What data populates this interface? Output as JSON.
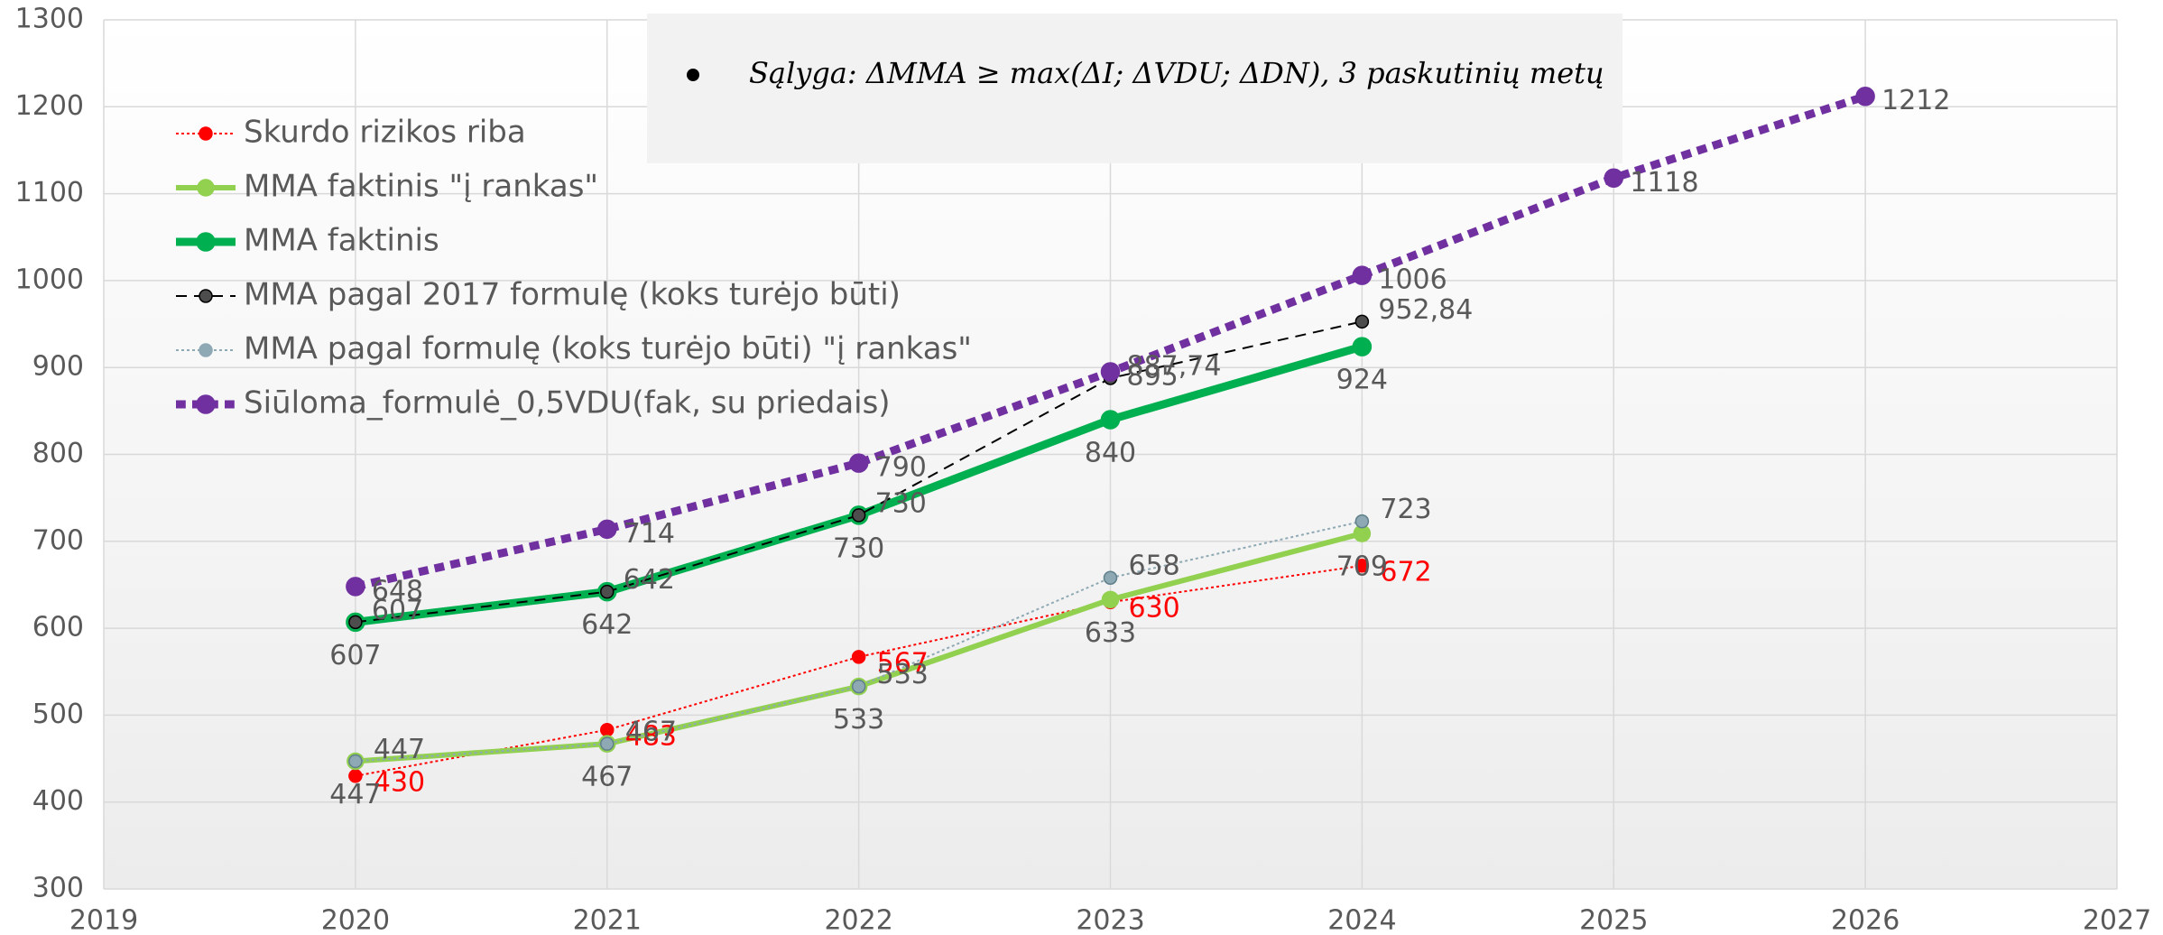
{
  "chart_data": {
    "type": "line",
    "annotation": {
      "prefix": "Sąlyga: ΔMMA ≥ max(ΔI; ΔVDU; ΔDN)",
      "suffix": ", 3 paskutinių metų"
    },
    "x": [
      2020,
      2021,
      2022,
      2023,
      2024,
      2025,
      2026
    ],
    "series": [
      {
        "name": "Skurdo rizikos riba",
        "color": "#ff0000",
        "label_color": "#ff0000",
        "line_style": "dotted",
        "values": [
          430,
          483,
          567,
          630,
          672,
          null,
          null
        ]
      },
      {
        "name": "MMA faktinis \"į rankas\"",
        "color": "#92d050",
        "label_color": "#595959",
        "line_style": "solid",
        "values": [
          447,
          467,
          533,
          633,
          709,
          null,
          null
        ]
      },
      {
        "name": "MMA faktinis",
        "color": "#00b050",
        "label_color": "#595959",
        "line_style": "solid",
        "values": [
          607,
          642,
          730,
          840,
          924,
          null,
          null
        ]
      },
      {
        "name": "MMA pagal 2017 formulę (koks turėjo būti)",
        "color": "#000000",
        "label_color": "#595959",
        "line_style": "dashed",
        "values": [
          607,
          642,
          730,
          887.74,
          952.84,
          null,
          null
        ],
        "value_labels": [
          "607",
          "642",
          "730",
          "887,74",
          "952,84",
          null,
          null
        ]
      },
      {
        "name": "MMA pagal formulę (koks turėjo būti) \"į rankas\"",
        "color": "#8ea9b4",
        "label_color": "#595959",
        "line_style": "dotted",
        "values": [
          447,
          467,
          533,
          658,
          723,
          null,
          null
        ]
      },
      {
        "name": "Siūloma_formulė_0,5VDU(fak, su priedais)",
        "color": "#7030a0",
        "label_color": "#595959",
        "line_style": "dotted",
        "values": [
          648,
          714,
          790,
          895,
          1006,
          1118,
          1212
        ]
      }
    ],
    "xlim": [
      2019,
      2027
    ],
    "xticks": [
      2019,
      2020,
      2021,
      2022,
      2023,
      2024,
      2025,
      2026,
      2027
    ],
    "ylim": [
      300,
      1300
    ],
    "yticks": [
      300,
      400,
      500,
      600,
      700,
      800,
      900,
      1000,
      1100,
      1200,
      1300
    ],
    "grid": true,
    "legend": "upper left"
  }
}
